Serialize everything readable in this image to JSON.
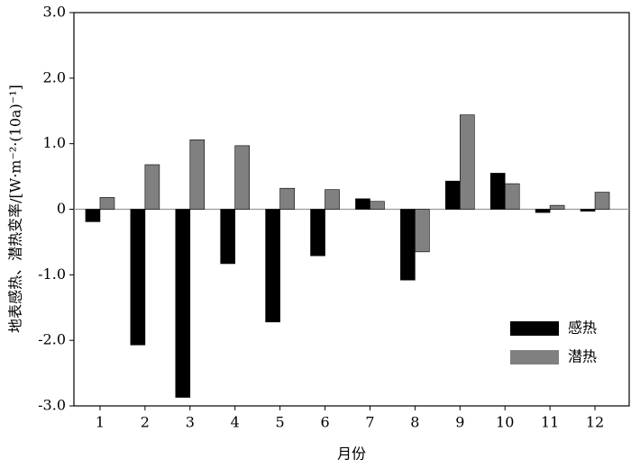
{
  "chart_data": {
    "type": "bar",
    "x_label": "月份",
    "y_label": "地表感热、潜热变率/[W·m⁻²·(10a)⁻¹]",
    "categories": [
      "1",
      "2",
      "3",
      "4",
      "5",
      "6",
      "7",
      "8",
      "9",
      "10",
      "11",
      "12"
    ],
    "series": [
      {
        "name": "感热",
        "color": "#000000",
        "values": [
          -0.19,
          -2.07,
          -2.87,
          -0.83,
          -1.72,
          -0.71,
          0.16,
          -1.08,
          0.43,
          0.55,
          -0.05,
          -0.03
        ]
      },
      {
        "name": "潜热",
        "color": "#808080",
        "values": [
          0.18,
          0.68,
          1.06,
          0.97,
          0.32,
          0.3,
          0.12,
          -0.65,
          1.44,
          0.39,
          0.06,
          0.26
        ]
      }
    ],
    "ylim": [
      -3,
      3
    ],
    "yticks": [
      {
        "value": 3,
        "label": "3.0"
      },
      {
        "value": 2,
        "label": "2.0"
      },
      {
        "value": 1,
        "label": "1.0"
      },
      0,
      {
        "value": -1,
        "label": "-1.0"
      },
      {
        "value": -2,
        "label": "-2.0"
      },
      {
        "value": -3,
        "label": "-3.0"
      }
    ],
    "legend": "lower right"
  }
}
